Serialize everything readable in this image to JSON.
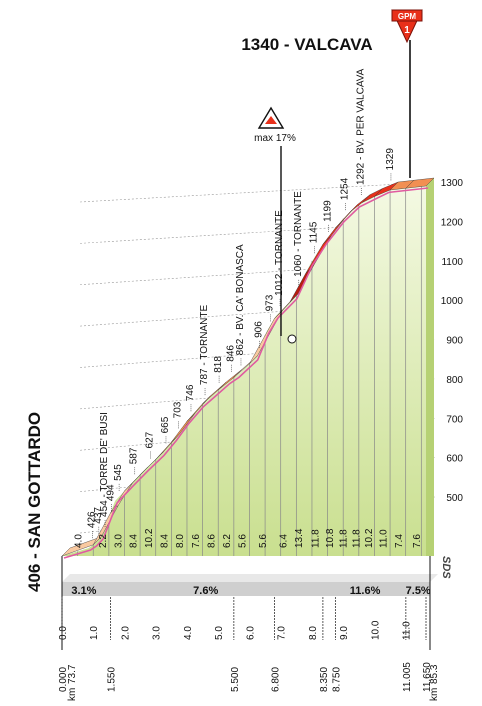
{
  "chart_data": {
    "type": "area",
    "title": "1340 - VALCAVA",
    "start_label": "406 - SAN GOTTARDO",
    "gpm_badge": {
      "line1": "GPM",
      "line2": "1"
    },
    "max_badge_label": "max 17%",
    "logo": "SDS",
    "ylim": [
      400,
      1340
    ],
    "y_ticks": [
      "500",
      "600",
      "700",
      "800",
      "900",
      "1000",
      "1100",
      "1200",
      "1300"
    ],
    "x_ticks": [
      "0.0",
      "1.0",
      "2.0",
      "3.0",
      "4.0",
      "5.0",
      "6.0",
      "7.0",
      "8.0",
      "9.0",
      "10.0",
      "11.0"
    ],
    "km_left_prefix": "km",
    "km_left_total": "73.7",
    "km_right_prefix": "km",
    "km_right_total": "85.3",
    "points": [
      {
        "x": 0.0,
        "y": 406,
        "label": ""
      },
      {
        "x": 0.85,
        "y": 426,
        "label": "426"
      },
      {
        "x": 1.05,
        "y": 437,
        "label": "437"
      },
      {
        "x": 1.25,
        "y": 454,
        "label": "454 - TORRE DE' BUSI"
      },
      {
        "x": 1.45,
        "y": 494,
        "label": "494"
      },
      {
        "x": 1.7,
        "y": 545,
        "label": "545"
      },
      {
        "x": 2.2,
        "y": 587,
        "label": "587"
      },
      {
        "x": 2.7,
        "y": 627,
        "label": "627"
      },
      {
        "x": 3.2,
        "y": 665,
        "label": "665"
      },
      {
        "x": 3.6,
        "y": 703,
        "label": "703"
      },
      {
        "x": 4.0,
        "y": 746,
        "label": "746"
      },
      {
        "x": 4.45,
        "y": 787,
        "label": "787 - TORNANTE"
      },
      {
        "x": 4.9,
        "y": 818,
        "label": "818"
      },
      {
        "x": 5.3,
        "y": 846,
        "label": "846"
      },
      {
        "x": 5.6,
        "y": 862,
        "label": "862 - BV. CA' BONASCA"
      },
      {
        "x": 6.2,
        "y": 906,
        "label": "906"
      },
      {
        "x": 6.55,
        "y": 973,
        "label": "973"
      },
      {
        "x": 6.85,
        "y": 1012,
        "label": "1012 - TORNANTE"
      },
      {
        "x": 7.45,
        "y": 1060,
        "label": "1060 - TORNANTE"
      },
      {
        "x": 7.95,
        "y": 1145,
        "label": "1145"
      },
      {
        "x": 8.4,
        "y": 1199,
        "label": "1199"
      },
      {
        "x": 8.95,
        "y": 1254,
        "label": "1254"
      },
      {
        "x": 9.45,
        "y": 1292,
        "label": "1292 - BV. PER VALCAVA"
      },
      {
        "x": 10.4,
        "y": 1329,
        "label": "1329"
      },
      {
        "x": 11.65,
        "y": 1340,
        "label": ""
      }
    ],
    "gradients": [
      {
        "from": 0.0,
        "to": 1.0,
        "value": "4.0"
      },
      {
        "from": 1.0,
        "to": 1.55,
        "value": "2.2"
      },
      {
        "from": 1.55,
        "to": 2.0,
        "value": "3.0"
      },
      {
        "from": 2.0,
        "to": 2.5,
        "value": "8.4"
      },
      {
        "from": 2.5,
        "to": 3.0,
        "value": "10.2"
      },
      {
        "from": 3.0,
        "to": 3.5,
        "value": "8.4"
      },
      {
        "from": 3.5,
        "to": 4.0,
        "value": "8.0"
      },
      {
        "from": 4.0,
        "to": 4.5,
        "value": "7.6"
      },
      {
        "from": 4.5,
        "to": 5.0,
        "value": "8.6"
      },
      {
        "from": 5.0,
        "to": 5.5,
        "value": "6.2"
      },
      {
        "from": 5.5,
        "to": 6.0,
        "value": "5.6"
      },
      {
        "from": 6.0,
        "to": 6.8,
        "value": "5.6"
      },
      {
        "from": 6.8,
        "to": 7.3,
        "value": "6.4"
      },
      {
        "from": 7.3,
        "to": 7.8,
        "value": "13.4"
      },
      {
        "from": 7.8,
        "to": 8.35,
        "value": "11.8"
      },
      {
        "from": 8.35,
        "to": 8.75,
        "value": "10.8"
      },
      {
        "from": 8.75,
        "to": 9.2,
        "value": "11.8"
      },
      {
        "from": 9.2,
        "to": 9.6,
        "value": "11.8"
      },
      {
        "from": 9.6,
        "to": 10.0,
        "value": "10.2"
      },
      {
        "from": 10.0,
        "to": 10.5,
        "value": "11.0"
      },
      {
        "from": 10.5,
        "to": 11.005,
        "value": "7.4"
      },
      {
        "from": 11.005,
        "to": 11.65,
        "value": "7.6"
      }
    ],
    "bottom_marks": [
      {
        "x": 0.0,
        "label": "0.000"
      },
      {
        "x": 1.55,
        "label": "1.550"
      },
      {
        "x": 5.5,
        "label": "5.500"
      },
      {
        "x": 6.8,
        "label": "6.800"
      },
      {
        "x": 8.35,
        "label": "8.350"
      },
      {
        "x": 8.75,
        "label": "8.750"
      },
      {
        "x": 11.005,
        "label": "11.005"
      },
      {
        "x": 11.65,
        "label": "11.650"
      }
    ],
    "segment_pcts": [
      {
        "x": 0.7,
        "label": "3.1%"
      },
      {
        "x": 4.6,
        "label": "7.6%"
      },
      {
        "x": 9.7,
        "label": "11.6%"
      },
      {
        "x": 11.4,
        "label": "7.5%"
      }
    ],
    "colors": {
      "road_red": "#e8301a",
      "road_dark": "#b81c10",
      "road_orange": "#f28f52",
      "road_light": "#f9c9a0",
      "sky_green": "#eef5d7",
      "ground_green": "#cfe39a",
      "bar_gray": "#cfcfcf",
      "pink_line": "#e05aa0"
    }
  }
}
